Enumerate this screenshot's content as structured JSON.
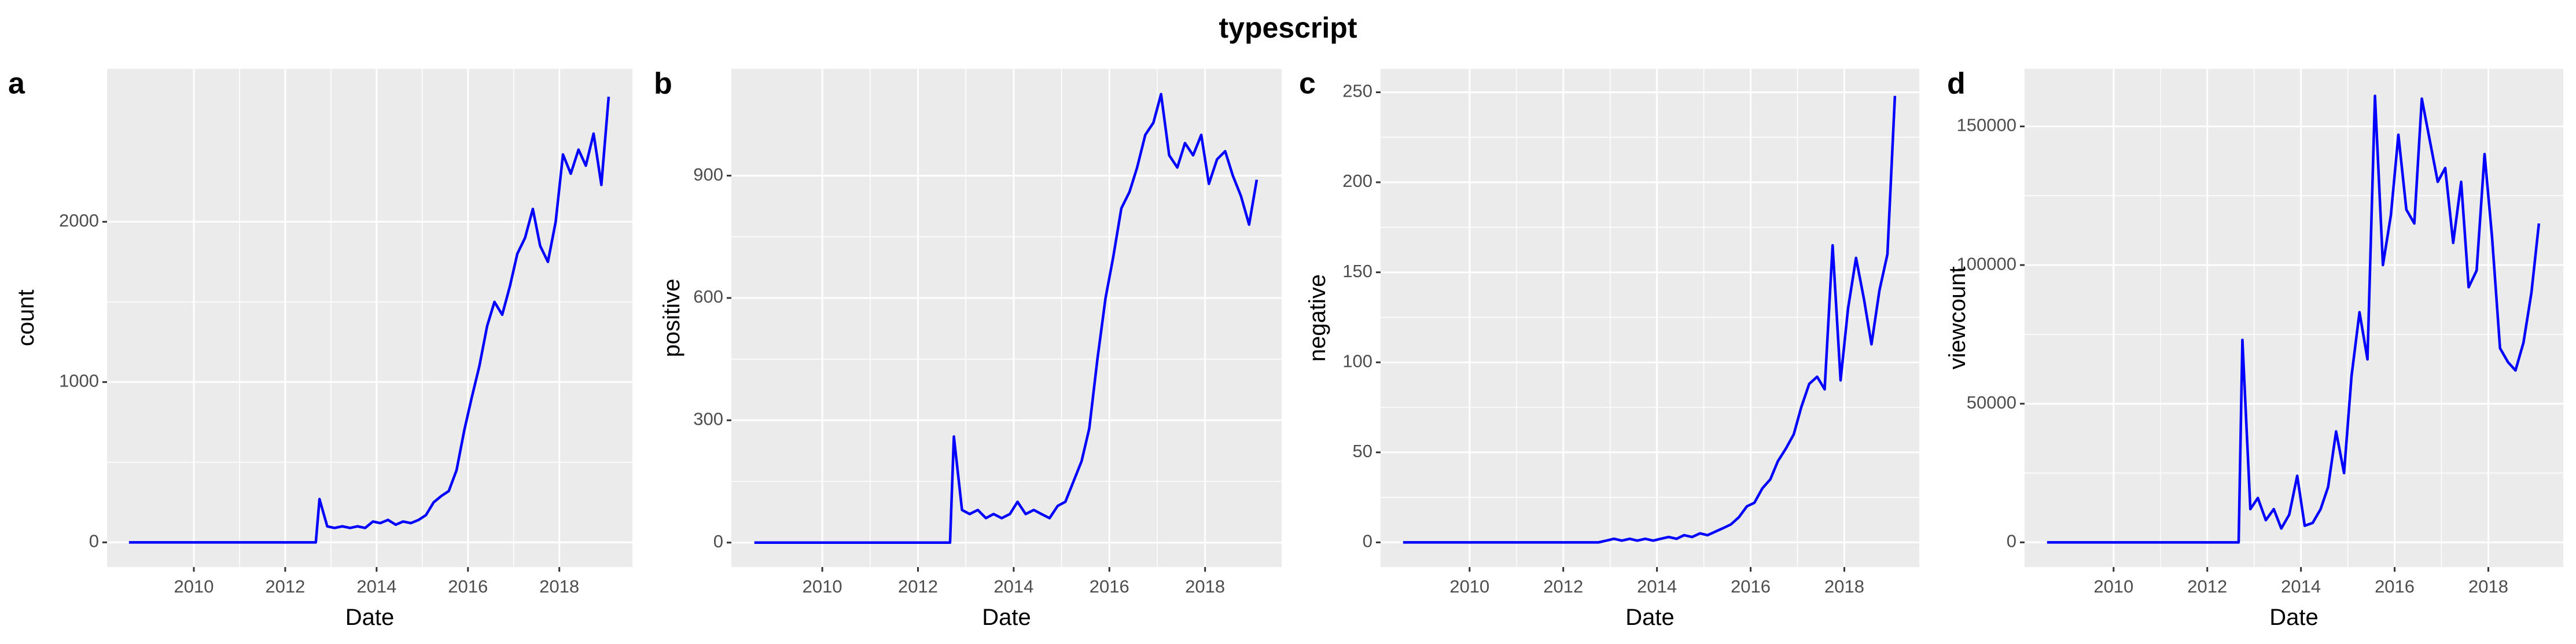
{
  "title": "typescript",
  "chart_data": [
    {
      "type": "line",
      "panel": "a",
      "xlabel": "Date",
      "ylabel": "count",
      "color": "#0000ff",
      "grid": true,
      "x": [
        2008.58,
        2012.67,
        2012.75,
        2012.92,
        2013.08,
        2013.25,
        2013.42,
        2013.58,
        2013.75,
        2013.92,
        2014.08,
        2014.25,
        2014.42,
        2014.58,
        2014.75,
        2014.92,
        2015.08,
        2015.25,
        2015.42,
        2015.58,
        2015.75,
        2015.92,
        2016.08,
        2016.25,
        2016.42,
        2016.58,
        2016.75,
        2016.92,
        2017.08,
        2017.25,
        2017.42,
        2017.58,
        2017.75,
        2017.92,
        2018.08,
        2018.25,
        2018.42,
        2018.58,
        2018.75,
        2018.92,
        2019.08
      ],
      "values": [
        0,
        0,
        270,
        100,
        90,
        100,
        90,
        100,
        90,
        130,
        120,
        140,
        110,
        130,
        120,
        140,
        170,
        250,
        290,
        320,
        450,
        700,
        900,
        1100,
        1350,
        1500,
        1420,
        1600,
        1800,
        1900,
        2080,
        1850,
        1750,
        2000,
        2420,
        2300,
        2450,
        2350,
        2550,
        2230,
        2780
      ],
      "xlim": [
        2008.1,
        2019.6
      ],
      "xticks": [
        2010,
        2012,
        2014,
        2016,
        2018
      ],
      "ylim": [
        -154,
        2954
      ],
      "yticks": [
        0,
        1000,
        2000
      ]
    },
    {
      "type": "line",
      "panel": "b",
      "xlabel": "Date",
      "ylabel": "positive",
      "color": "#0000ff",
      "grid": true,
      "x": [
        2008.58,
        2012.67,
        2012.75,
        2012.92,
        2013.08,
        2013.25,
        2013.42,
        2013.58,
        2013.75,
        2013.92,
        2014.08,
        2014.25,
        2014.42,
        2014.58,
        2014.75,
        2014.92,
        2015.08,
        2015.25,
        2015.42,
        2015.58,
        2015.75,
        2015.92,
        2016.08,
        2016.25,
        2016.42,
        2016.58,
        2016.75,
        2016.92,
        2017.08,
        2017.25,
        2017.42,
        2017.58,
        2017.75,
        2017.92,
        2018.08,
        2018.25,
        2018.42,
        2018.58,
        2018.75,
        2018.92,
        2019.08
      ],
      "values": [
        0,
        0,
        260,
        80,
        70,
        80,
        60,
        70,
        60,
        70,
        100,
        70,
        80,
        70,
        60,
        90,
        100,
        150,
        200,
        280,
        450,
        600,
        700,
        820,
        860,
        920,
        1000,
        1030,
        1100,
        950,
        920,
        980,
        950,
        1000,
        880,
        940,
        960,
        900,
        850,
        780,
        890
      ],
      "xlim": [
        2008.1,
        2019.6
      ],
      "xticks": [
        2010,
        2012,
        2014,
        2016,
        2018
      ],
      "ylim": [
        -60,
        1162
      ],
      "yticks": [
        0,
        300,
        600,
        900
      ]
    },
    {
      "type": "line",
      "panel": "c",
      "xlabel": "Date",
      "ylabel": "negative",
      "color": "#0000ff",
      "grid": true,
      "x": [
        2008.58,
        2012.67,
        2012.75,
        2012.92,
        2013.08,
        2013.25,
        2013.42,
        2013.58,
        2013.75,
        2013.92,
        2014.08,
        2014.25,
        2014.42,
        2014.58,
        2014.75,
        2014.92,
        2015.08,
        2015.25,
        2015.42,
        2015.58,
        2015.75,
        2015.92,
        2016.08,
        2016.25,
        2016.42,
        2016.58,
        2016.75,
        2016.92,
        2017.08,
        2017.25,
        2017.42,
        2017.58,
        2017.75,
        2017.92,
        2018.08,
        2018.25,
        2018.42,
        2018.58,
        2018.75,
        2018.92,
        2019.08
      ],
      "values": [
        0,
        0,
        0,
        1,
        2,
        1,
        2,
        1,
        2,
        1,
        2,
        3,
        2,
        4,
        3,
        5,
        4,
        6,
        8,
        10,
        14,
        20,
        22,
        30,
        35,
        45,
        52,
        60,
        75,
        88,
        92,
        85,
        165,
        90,
        130,
        158,
        135,
        110,
        140,
        160,
        248
      ],
      "xlim": [
        2008.1,
        2019.6
      ],
      "xticks": [
        2010,
        2012,
        2014,
        2016,
        2018
      ],
      "ylim": [
        -13.7,
        263
      ],
      "yticks": [
        0,
        50,
        100,
        150,
        200,
        250
      ]
    },
    {
      "type": "line",
      "panel": "d",
      "xlabel": "Date",
      "ylabel": "viewcount",
      "color": "#0000ff",
      "grid": true,
      "x": [
        2008.58,
        2012.67,
        2012.75,
        2012.92,
        2013.08,
        2013.25,
        2013.42,
        2013.58,
        2013.75,
        2013.92,
        2014.08,
        2014.25,
        2014.42,
        2014.58,
        2014.75,
        2014.92,
        2015.08,
        2015.25,
        2015.42,
        2015.58,
        2015.75,
        2015.92,
        2016.08,
        2016.25,
        2016.42,
        2016.58,
        2016.75,
        2016.92,
        2017.08,
        2017.25,
        2017.42,
        2017.58,
        2017.75,
        2017.92,
        2018.08,
        2018.25,
        2018.42,
        2018.58,
        2018.75,
        2018.92,
        2019.08
      ],
      "values": [
        0,
        0,
        73000,
        12000,
        16000,
        8000,
        12000,
        5000,
        10000,
        24000,
        6000,
        7000,
        12000,
        20000,
        40000,
        25000,
        60000,
        83000,
        66000,
        161000,
        100000,
        118000,
        147000,
        120000,
        115000,
        160000,
        145000,
        130000,
        135000,
        108000,
        130000,
        92000,
        98000,
        140000,
        110000,
        70000,
        65000,
        62000,
        72000,
        90000,
        115000
      ],
      "xlim": [
        2008.1,
        2019.6
      ],
      "xticks": [
        2010,
        2012,
        2014,
        2016,
        2018
      ],
      "ylim": [
        -8900,
        170750
      ],
      "yticks": [
        0,
        50000,
        100000,
        150000
      ]
    }
  ]
}
